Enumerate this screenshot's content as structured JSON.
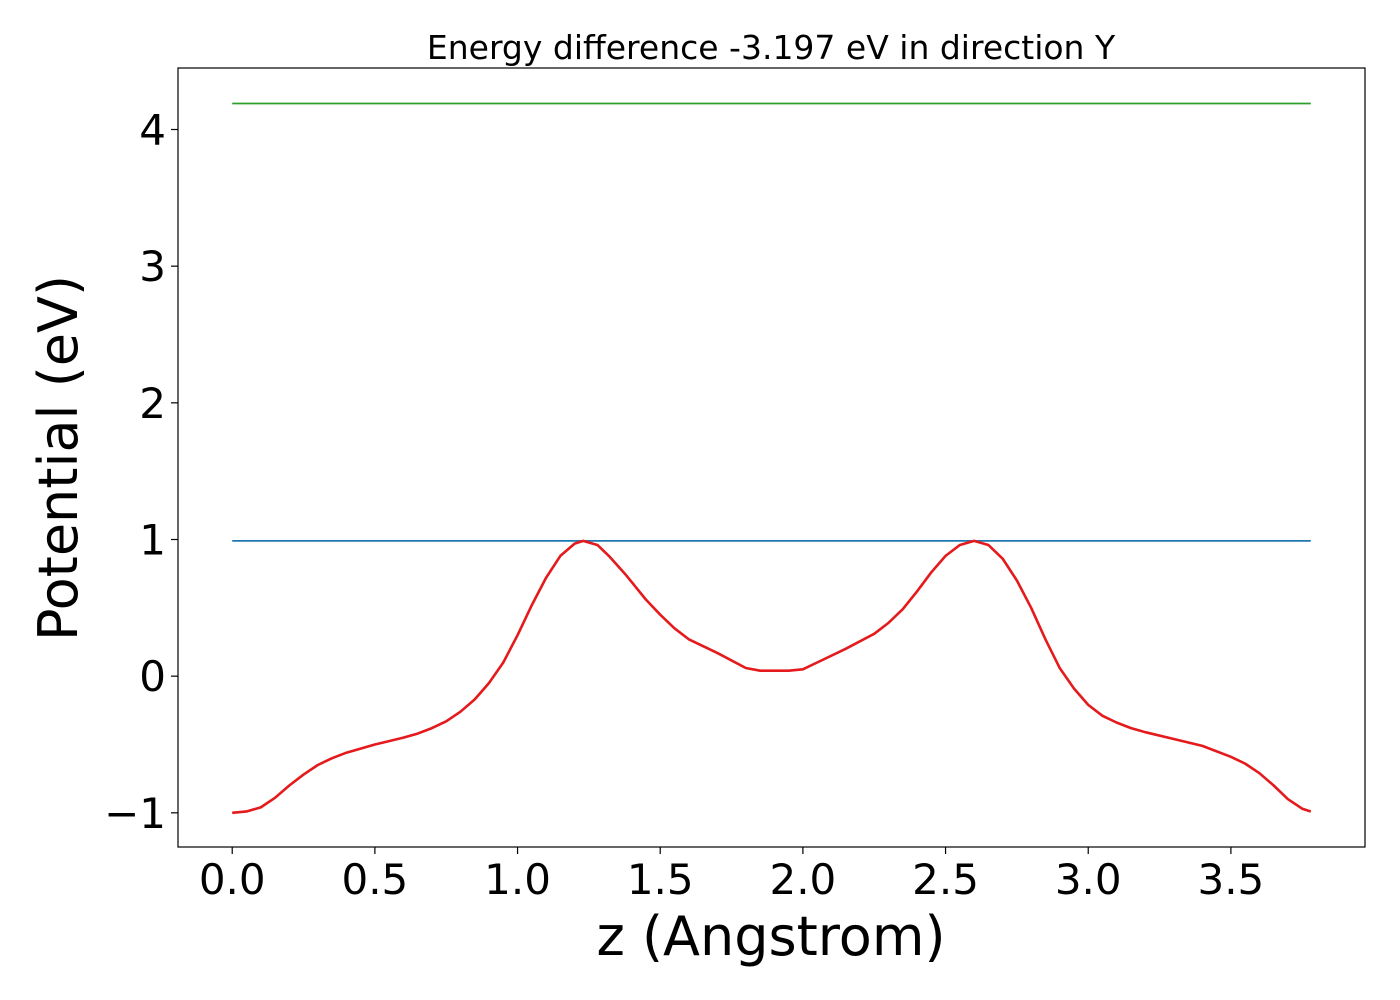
{
  "chart_data": {
    "type": "line",
    "title": "Energy difference -3.197 eV in direction Y",
    "xlabel": "z (Angstrom)",
    "ylabel": "Potential (eV)",
    "xlim": [
      -0.19,
      3.97
    ],
    "ylim": [
      -1.25,
      4.45
    ],
    "grid": false,
    "x_ticks": [
      {
        "value": 0.0,
        "label": "0.0"
      },
      {
        "value": 0.5,
        "label": "0.5"
      },
      {
        "value": 1.0,
        "label": "1.0"
      },
      {
        "value": 1.5,
        "label": "1.5"
      },
      {
        "value": 2.0,
        "label": "2.0"
      },
      {
        "value": 2.5,
        "label": "2.5"
      },
      {
        "value": 3.0,
        "label": "3.0"
      },
      {
        "value": 3.5,
        "label": "3.5"
      }
    ],
    "y_ticks": [
      {
        "value": -1,
        "label": "−1"
      },
      {
        "value": 0,
        "label": "0"
      },
      {
        "value": 1,
        "label": "1"
      },
      {
        "value": 2,
        "label": "2"
      },
      {
        "value": 3,
        "label": "3"
      },
      {
        "value": 4,
        "label": "4"
      }
    ],
    "series": [
      {
        "color": "#2ca02c",
        "x": [
          0.0,
          3.78
        ],
        "y": [
          4.19,
          4.19
        ]
      },
      {
        "color": "#1f77b4",
        "x": [
          0.0,
          3.78
        ],
        "y": [
          0.99,
          0.99
        ]
      },
      {
        "color": "#e41a1c",
        "x": [
          0.0,
          0.05,
          0.1,
          0.15,
          0.2,
          0.25,
          0.3,
          0.35,
          0.4,
          0.5,
          0.6,
          0.65,
          0.7,
          0.75,
          0.8,
          0.85,
          0.9,
          0.95,
          1.0,
          1.05,
          1.1,
          1.15,
          1.2,
          1.23,
          1.28,
          1.32,
          1.38,
          1.45,
          1.5,
          1.55,
          1.6,
          1.7,
          1.8,
          1.85,
          1.95,
          2.0,
          2.05,
          2.15,
          2.25,
          2.3,
          2.35,
          2.4,
          2.45,
          2.5,
          2.55,
          2.6,
          2.65,
          2.7,
          2.75,
          2.8,
          2.85,
          2.9,
          2.95,
          3.0,
          3.05,
          3.1,
          3.15,
          3.2,
          3.3,
          3.4,
          3.5,
          3.55,
          3.6,
          3.65,
          3.7,
          3.75,
          3.78
        ],
        "y": [
          -1.0,
          -0.99,
          -0.96,
          -0.89,
          -0.8,
          -0.72,
          -0.65,
          -0.6,
          -0.56,
          -0.5,
          -0.45,
          -0.42,
          -0.38,
          -0.33,
          -0.26,
          -0.17,
          -0.05,
          0.1,
          0.3,
          0.52,
          0.72,
          0.88,
          0.97,
          0.99,
          0.96,
          0.88,
          0.74,
          0.56,
          0.45,
          0.35,
          0.27,
          0.17,
          0.06,
          0.04,
          0.04,
          0.05,
          0.1,
          0.2,
          0.31,
          0.39,
          0.49,
          0.62,
          0.76,
          0.88,
          0.96,
          0.99,
          0.96,
          0.86,
          0.7,
          0.5,
          0.27,
          0.06,
          -0.09,
          -0.21,
          -0.29,
          -0.34,
          -0.38,
          -0.41,
          -0.46,
          -0.51,
          -0.59,
          -0.64,
          -0.71,
          -0.8,
          -0.9,
          -0.97,
          -0.99
        ]
      }
    ]
  }
}
